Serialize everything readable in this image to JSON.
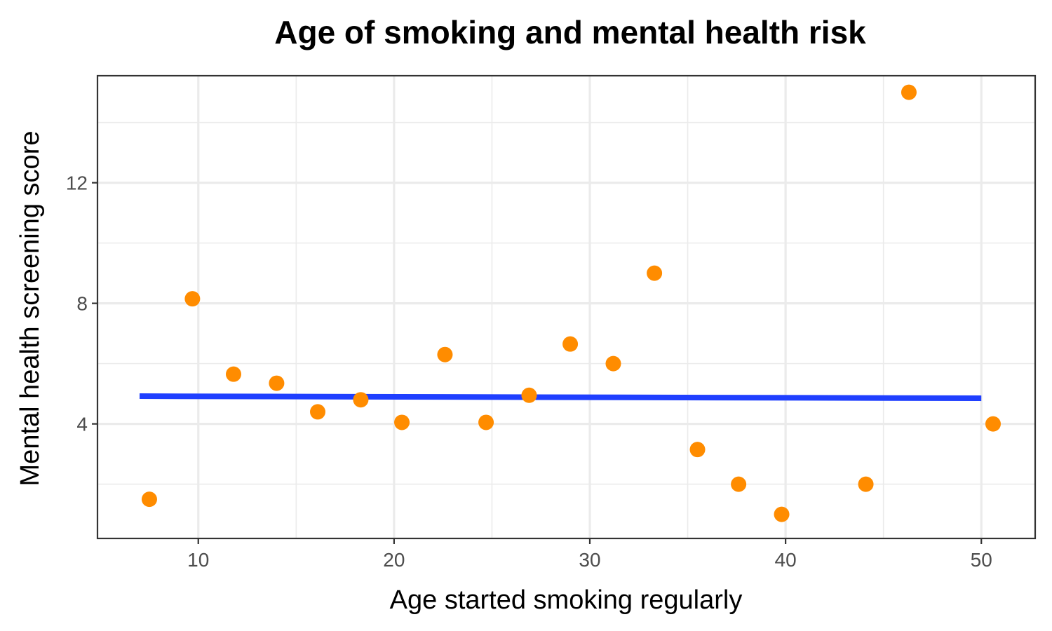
{
  "chart_data": {
    "type": "scatter",
    "title": "Age of smoking and mental health risk",
    "xlabel": "Age started smoking regularly",
    "ylabel": "Mental health screening score",
    "xlim": [
      4.85,
      52.75
    ],
    "ylim": [
      0.2,
      15.55
    ],
    "x_ticks": [
      10,
      20,
      30,
      40,
      50
    ],
    "y_ticks": [
      4,
      8,
      12
    ],
    "x_minor": [
      15,
      25,
      35,
      45
    ],
    "y_minor": [
      2,
      6,
      10,
      14
    ],
    "grid": true,
    "legend": "none",
    "colors": {
      "points": "#ff8c00",
      "trend": "#1f3fff",
      "grid": "#ebebeb",
      "frame": "#333333"
    },
    "series": [
      {
        "kind": "points",
        "x": [
          7.5,
          9.7,
          11.8,
          14.0,
          16.1,
          18.3,
          20.4,
          22.6,
          24.7,
          26.9,
          29.0,
          31.2,
          33.3,
          35.5,
          37.6,
          39.8,
          44.1,
          46.3,
          50.6
        ],
        "y": [
          1.5,
          8.15,
          5.65,
          5.35,
          4.4,
          4.8,
          4.05,
          6.3,
          4.05,
          4.95,
          6.65,
          6.0,
          9.0,
          3.15,
          2.0,
          1.0,
          2.0,
          15.0,
          4.0
        ]
      },
      {
        "kind": "trend",
        "x": [
          7.0,
          50.0
        ],
        "y": [
          4.92,
          4.85
        ]
      }
    ]
  }
}
